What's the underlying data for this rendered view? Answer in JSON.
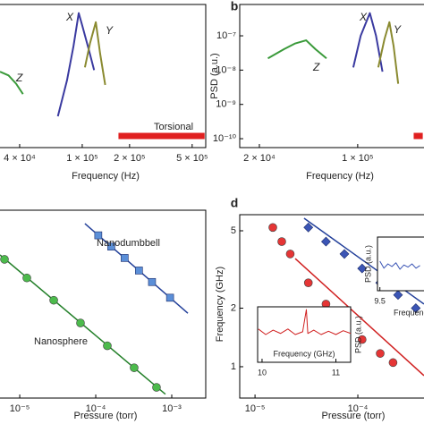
{
  "chart_data": [
    {
      "type": "line",
      "x_label": "Frequency (Hz)",
      "xscale": "log",
      "yscale": "log",
      "xlim": [
        30000,
        610000
      ],
      "ylim": [
        5.5e-11,
        8.2e-07
      ],
      "xticks": [
        {
          "value": 40000,
          "label": "4 × 10⁴"
        },
        {
          "value": 100000,
          "label": "1 × 10⁵"
        },
        {
          "value": 200000,
          "label": "2 × 10⁵"
        },
        {
          "value": 500000,
          "label": "5 × 10⁵"
        }
      ],
      "series": [
        {
          "name": "Z",
          "color": "#3a9a3a",
          "x": [
            30000,
            34000,
            38000,
            42000
          ],
          "values": [
            9e-09,
            7e-09,
            4e-09,
            2e-09
          ]
        },
        {
          "name": "X",
          "color": "#3a3aa0",
          "x": [
            70000,
            80000,
            88000,
            95000,
            100000,
            110000,
            119000
          ],
          "values": [
            4.5e-10,
            5e-09,
            5e-08,
            4.6e-07,
            2e-07,
            4e-08,
            1e-08
          ]
        },
        {
          "name": "Y",
          "color": "#8a8a30",
          "x": [
            104000,
            112000,
            122000,
            130000,
            140000
          ],
          "values": [
            1.2e-08,
            6e-08,
            2.5e-07,
            3e-08,
            3.7e-09
          ]
        },
        {
          "name": "Torsional",
          "color": "#e02020",
          "x": [
            170000,
            600000
          ],
          "values": [
            1.2e-10,
            1.2e-10
          ]
        }
      ]
    },
    {
      "type": "line",
      "panel_label": "b",
      "x_label": "Frequency (Hz)",
      "y_label": "PSD (a.u.)",
      "xscale": "log",
      "yscale": "log",
      "xlim": [
        14500,
        296000
      ],
      "ylim": [
        5.5e-11,
        8.2e-07
      ],
      "xticks": [
        {
          "value": 20000,
          "label": "2 × 10⁴"
        },
        {
          "value": 100000,
          "label": "1 × 10⁵"
        }
      ],
      "yticks": [
        {
          "value": 1e-07,
          "label": "10⁻⁷"
        },
        {
          "value": 1e-08,
          "label": "10⁻⁸"
        },
        {
          "value": 1e-09,
          "label": "10⁻⁹"
        },
        {
          "value": 1e-10,
          "label": "10⁻¹⁰"
        }
      ],
      "series": [
        {
          "name": "Z",
          "color": "#3a9a3a",
          "x": [
            23000,
            30000,
            36000,
            43000,
            50000,
            60000
          ],
          "values": [
            2.2e-08,
            4.1e-08,
            6e-08,
            7.4e-08,
            4.1e-08,
            2.2e-08
          ]
        },
        {
          "name": "X",
          "color": "#3a3aa0",
          "x": [
            93000,
            105000,
            122000,
            135000,
            150000
          ],
          "values": [
            1.2e-08,
            1e-07,
            4.6e-07,
            1e-07,
            9e-09
          ]
        },
        {
          "name": "Y",
          "color": "#8a8a30",
          "x": [
            140000,
            155000,
            168000,
            180000,
            194000
          ],
          "values": [
            1.2e-08,
            8e-08,
            2.5e-07,
            5e-08,
            4e-09
          ]
        },
        {
          "color": "#e02020",
          "x": [
            250000,
            290000
          ],
          "values": [
            1.2e-10,
            1.2e-10
          ]
        }
      ]
    },
    {
      "type": "line",
      "x_label": "Pressure (torr)",
      "xscale": "log",
      "yscale": "log",
      "xlim": [
        5.5e-06,
        0.0028
      ],
      "ylim": [
        1,
        100
      ],
      "xticks": [
        {
          "value": 1e-05,
          "label": "10⁻⁵"
        },
        {
          "value": 0.0001,
          "label": "10⁻⁴"
        },
        {
          "value": 0.001,
          "label": "10⁻³"
        }
      ],
      "series": [
        {
          "style": "line",
          "color": "#23409a",
          "x": [
            7.2e-05,
            0.00163
          ],
          "values": [
            72,
            8
          ]
        },
        {
          "style": "line",
          "color": "#24802a",
          "x": [
            5.5e-06,
            0.000825
          ],
          "values": [
            33.4,
            1.1
          ]
        },
        {
          "name": "Nanodumbbell",
          "style": "markers",
          "marker": "square",
          "color": "#5b8fd8",
          "x": [
            0.000108,
            0.00016,
            0.00024,
            0.00037,
            0.00055,
            0.00095
          ],
          "values": [
            54,
            41,
            31,
            22.8,
            17.2,
            11.7
          ]
        },
        {
          "name": "Nanosphere",
          "style": "markers",
          "marker": "circle",
          "color": "#4cbb4c",
          "x": [
            6.3e-06,
            1.24e-05,
            2.8e-05,
            6.3e-05,
            0.000142,
            0.00032,
            0.00063
          ],
          "values": [
            30,
            19,
            11,
            6.3,
            3.6,
            2.1,
            1.3
          ]
        }
      ]
    },
    {
      "type": "line",
      "panel_label": "d",
      "x_label": "Pressure (torr)",
      "y_label": "Frequency (GHz)",
      "xscale": "log",
      "yscale": "log",
      "xlim": [
        7.1e-06,
        0.00044
      ],
      "ylim": [
        0.69,
        6.05
      ],
      "xticks": [
        {
          "value": 1e-05,
          "label": "10⁻⁵"
        },
        {
          "value": 0.0001,
          "label": "10⁻⁴"
        }
      ],
      "yticks": [
        5,
        2,
        1
      ],
      "series": [
        {
          "style": "line",
          "color": "#d02020",
          "x": [
            2.46e-05,
            0.00044
          ],
          "values": [
            3.6,
            0.9
          ]
        },
        {
          "style": "line",
          "color": "#23409a",
          "x": [
            3e-05,
            0.00044
          ],
          "values": [
            5.8,
            2.1
          ]
        },
        {
          "style": "markers",
          "marker": "circle",
          "color": "#e53535",
          "x": [
            1.49e-05,
            1.82e-05,
            2.2e-05,
            3.3e-05,
            4.9e-05,
            7.4e-05,
            0.00011,
            0.000165,
            0.00022
          ],
          "values": [
            5.2,
            4.4,
            3.8,
            2.7,
            2.1,
            1.7,
            1.38,
            1.17,
            1.05
          ]
        },
        {
          "style": "markers",
          "marker": "diamond",
          "color": "#3b55b5",
          "x": [
            3.3e-05,
            4.9e-05,
            7.4e-05,
            0.00011,
            0.000165,
            0.000246,
            0.000366
          ],
          "values": [
            5.2,
            4.4,
            3.8,
            3.2,
            2.7,
            2.34,
            2
          ]
        }
      ]
    },
    {
      "type": "line",
      "x_label": "Frequency",
      "y_label": "PSD (a.u.)",
      "xlim": [
        9.47,
        10.05
      ],
      "ylim": [
        0,
        1
      ],
      "xticks": [
        9.5
      ],
      "series": [
        {
          "color": "#3b55b5",
          "x": [
            9.5,
            9.55,
            9.6,
            9.65,
            9.7,
            9.75,
            9.8,
            9.85,
            9.9,
            9.95,
            10
          ],
          "values": [
            0.55,
            0.42,
            0.5,
            0.45,
            0.52,
            0.4,
            0.48,
            0.44,
            0.5,
            0.42,
            0.47
          ]
        }
      ]
    },
    {
      "type": "line",
      "x_label": "Frequency (GHz)",
      "y_label": "PSD (a.u.)",
      "xlim": [
        9.94,
        11.2
      ],
      "ylim": [
        0,
        1
      ],
      "xticks": [
        10,
        11
      ],
      "series": [
        {
          "color": "#d02020",
          "x": [
            9.95,
            10.05,
            10.15,
            10.25,
            10.35,
            10.45,
            10.55,
            10.6,
            10.62,
            10.7,
            10.8,
            10.9,
            11,
            11.1,
            11.2
          ],
          "values": [
            0.6,
            0.5,
            0.58,
            0.52,
            0.6,
            0.5,
            0.55,
            0.95,
            0.52,
            0.58,
            0.5,
            0.56,
            0.5,
            0.57,
            0.52
          ]
        }
      ]
    }
  ]
}
